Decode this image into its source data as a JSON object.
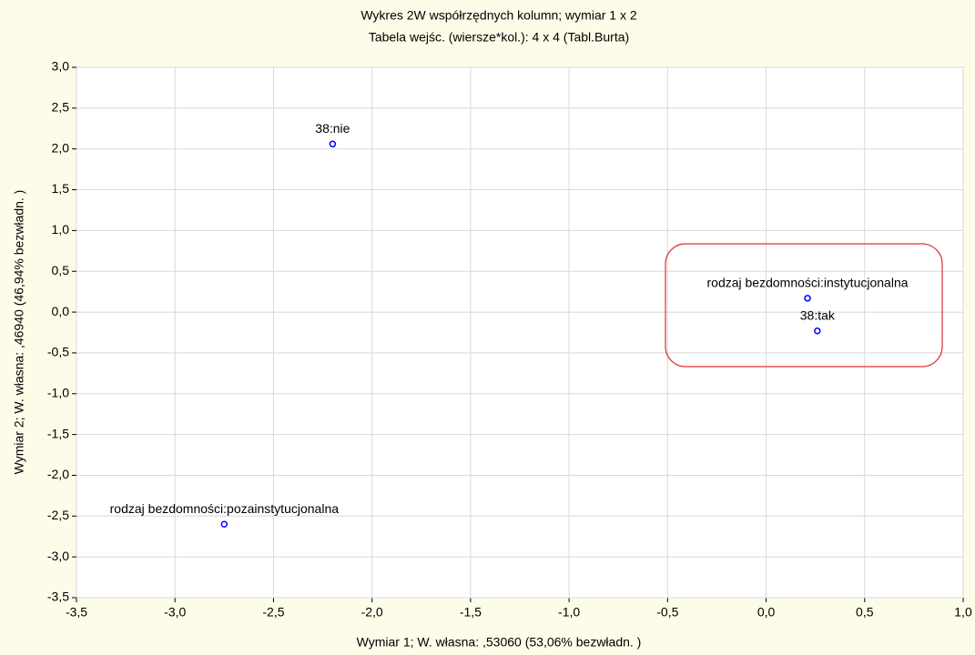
{
  "chart_data": {
    "type": "scatter",
    "title": "Wykres 2W współrzędnych kolumn; wymiar     1 x  2",
    "subtitle": "Tabela wejśc. (wiersze*kol.): 4 x 4 (Tabl.Burta)",
    "x_label": "Wymiar    1; W. własna:  ,53060 (53,06% bezwładn. )",
    "y_label": "Wymiar    2; W. własna:  ,46940 (46,94% bezwładn. )",
    "labels": [
      "38:nie",
      "rodzaj bezdomności:pozainstytucjonalna",
      "rodzaj bezdomności:instytucjonalna",
      "38:tak"
    ],
    "x": [
      -2.2,
      -2.75,
      0.21,
      0.26
    ],
    "values": [
      2.06,
      -2.6,
      0.17,
      -0.23
    ],
    "color": "#0000ff",
    "xlim": [
      -3.5,
      1.0
    ],
    "xticks": [
      {
        "value": -3.5,
        "label": "-3,5"
      },
      {
        "value": -3.0,
        "label": "-3,0"
      },
      {
        "value": -2.5,
        "label": "-2,5"
      },
      {
        "value": -2.0,
        "label": "-2,0"
      },
      {
        "value": -1.5,
        "label": "-1,5"
      },
      {
        "value": -1.0,
        "label": "-1,0"
      },
      {
        "value": -0.5,
        "label": "-0,5"
      },
      {
        "value": 0.0,
        "label": "0,0"
      },
      {
        "value": 0.5,
        "label": "0,5"
      },
      {
        "value": 1.0,
        "label": "1,0"
      }
    ],
    "ylim": [
      -3.5,
      3.0
    ],
    "yticks": [
      {
        "value": 3.0,
        "label": "3,0"
      },
      {
        "value": 2.5,
        "label": "2,5"
      },
      {
        "value": 2.0,
        "label": "2,0"
      },
      {
        "value": 1.5,
        "label": "1,5"
      },
      {
        "value": 1.0,
        "label": "1,0"
      },
      {
        "value": 0.5,
        "label": "0,5"
      },
      {
        "value": 0.0,
        "label": "0,0"
      },
      {
        "value": -0.5,
        "label": "-0,5"
      },
      {
        "value": -1.0,
        "label": "-1,0"
      },
      {
        "value": -1.5,
        "label": "-1,5"
      },
      {
        "value": -2.0,
        "label": "-2,0"
      },
      {
        "value": -2.5,
        "label": "-2,5"
      },
      {
        "value": -3.0,
        "label": "-3,0"
      },
      {
        "value": -3.5,
        "label": "-3,5"
      }
    ],
    "grid": true
  }
}
